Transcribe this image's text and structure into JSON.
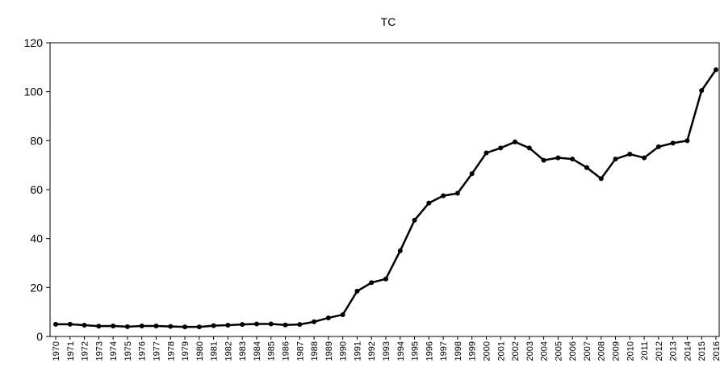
{
  "chart_data": {
    "type": "line",
    "title": "TC",
    "categories": [
      "1970",
      "1971",
      "1972",
      "1973",
      "1974",
      "1975",
      "1976",
      "1977",
      "1978",
      "1979",
      "1980",
      "1981",
      "1982",
      "1983",
      "1984",
      "1985",
      "1986",
      "1987",
      "1988",
      "1989",
      "1990",
      "1991",
      "1992",
      "1993",
      "1994",
      "1995",
      "1996",
      "1997",
      "1998",
      "1999",
      "2000",
      "2001",
      "2002",
      "2003",
      "2004",
      "2005",
      "2006",
      "2007",
      "2008",
      "2009",
      "2010",
      "2011",
      "2012",
      "2013",
      "2014",
      "2015",
      "2016"
    ],
    "values": [
      5.0,
      5.0,
      4.6,
      4.2,
      4.3,
      4.0,
      4.3,
      4.3,
      4.1,
      3.9,
      3.9,
      4.4,
      4.6,
      4.9,
      5.1,
      5.1,
      4.7,
      4.9,
      6.0,
      7.6,
      8.9,
      18.5,
      22.0,
      23.5,
      35.0,
      47.5,
      54.5,
      57.5,
      58.5,
      66.5,
      75.0,
      77.0,
      79.5,
      77.0,
      72.0,
      73.0,
      72.5,
      69.0,
      64.5,
      72.5,
      74.5,
      73.0,
      77.5,
      79.0,
      80.0,
      100.5,
      109.0
    ],
    "color": "#000000",
    "ylim": [
      0,
      120
    ],
    "yticks": [
      0,
      20,
      40,
      60,
      80,
      100,
      120
    ],
    "grid": false
  }
}
